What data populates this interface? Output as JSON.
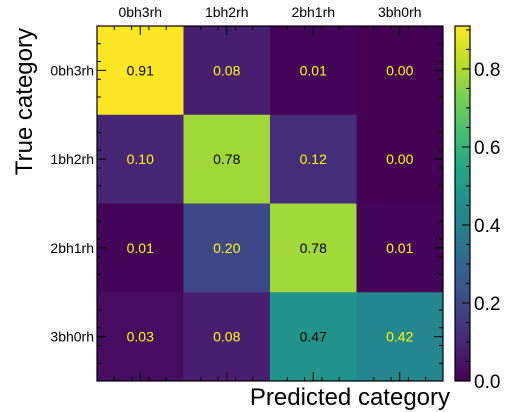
{
  "chart_data": {
    "type": "heatmap",
    "title": "",
    "xlabel": "Predicted category",
    "ylabel": "True category",
    "x_categories": [
      "0bh3rh",
      "1bh2rh",
      "2bh1rh",
      "3bh0rh"
    ],
    "y_categories": [
      "0bh3rh",
      "1bh2rh",
      "2bh1rh",
      "3bh0rh"
    ],
    "values": [
      [
        0.91,
        0.08,
        0.01,
        0.0
      ],
      [
        0.1,
        0.78,
        0.12,
        0.0
      ],
      [
        0.01,
        0.2,
        0.78,
        0.01
      ],
      [
        0.03,
        0.08,
        0.47,
        0.42
      ]
    ],
    "value_labels": [
      [
        "0.91",
        "0.08",
        "0.01",
        "0.00"
      ],
      [
        "0.10",
        "0.78",
        "0.12",
        "0.00"
      ],
      [
        "0.01",
        "0.20",
        "0.78",
        "0.01"
      ],
      [
        "0.03",
        "0.08",
        "0.47",
        "0.42"
      ]
    ],
    "colormap": "viridis",
    "color_range": [
      0,
      0.91
    ],
    "light_text_color": "#ffff00",
    "dark_text_color": "#000000",
    "x_tick_position": "top",
    "colorbar": {
      "position": "right",
      "ticks": [
        0.0,
        0.2,
        0.4,
        0.6,
        0.8
      ],
      "tick_labels": [
        "0.0",
        "0.2",
        "0.4",
        "0.6",
        "0.8"
      ]
    },
    "grid": false
  }
}
